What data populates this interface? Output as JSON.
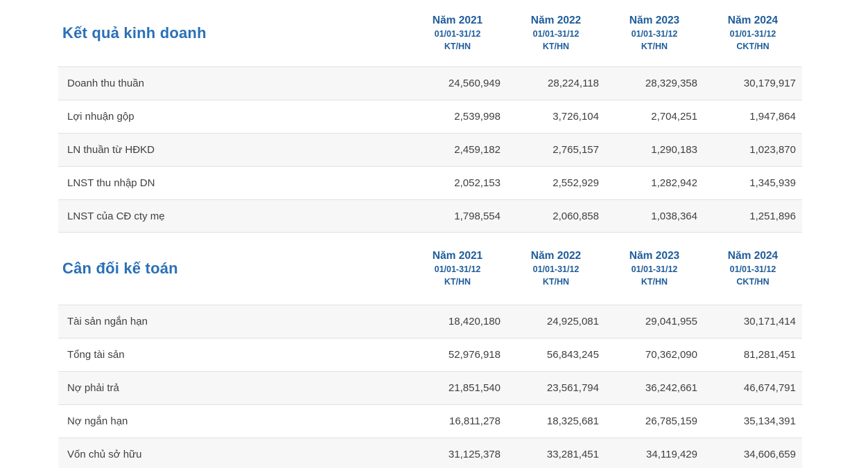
{
  "colors": {
    "section_title_blue": "#2a70b8",
    "column_header_blue": "#1e5c9a",
    "row_stripe": "#f7f7f7",
    "row_border": "#e1e1e1",
    "text": "#404040"
  },
  "sections": [
    {
      "title": "Kết quả kinh doanh",
      "columns": [
        {
          "year": "Năm 2021",
          "period": "01/01-31/12",
          "basis": "KT/HN"
        },
        {
          "year": "Năm 2022",
          "period": "01/01-31/12",
          "basis": "KT/HN"
        },
        {
          "year": "Năm 2023",
          "period": "01/01-31/12",
          "basis": "KT/HN"
        },
        {
          "year": "Năm 2024",
          "period": "01/01-31/12",
          "basis": "CKT/HN"
        }
      ],
      "rows": [
        {
          "label": "Doanh thu thuần",
          "values": [
            "24,560,949",
            "28,224,118",
            "28,329,358",
            "30,179,917"
          ]
        },
        {
          "label": "Lợi nhuận gộp",
          "values": [
            "2,539,998",
            "3,726,104",
            "2,704,251",
            "1,947,864"
          ]
        },
        {
          "label": "LN thuần từ HĐKD",
          "values": [
            "2,459,182",
            "2,765,157",
            "1,290,183",
            "1,023,870"
          ]
        },
        {
          "label": "LNST thu nhập DN",
          "values": [
            "2,052,153",
            "2,552,929",
            "1,282,942",
            "1,345,939"
          ]
        },
        {
          "label": "LNST của CĐ cty mẹ",
          "values": [
            "1,798,554",
            "2,060,858",
            "1,038,364",
            "1,251,896"
          ]
        }
      ]
    },
    {
      "title": "Cân đối kế toán",
      "columns": [
        {
          "year": "Năm 2021",
          "period": "01/01-31/12",
          "basis": "KT/HN"
        },
        {
          "year": "Năm 2022",
          "period": "01/01-31/12",
          "basis": "KT/HN"
        },
        {
          "year": "Năm 2023",
          "period": "01/01-31/12",
          "basis": "KT/HN"
        },
        {
          "year": "Năm 2024",
          "period": "01/01-31/12",
          "basis": "CKT/HN"
        }
      ],
      "rows": [
        {
          "label": "Tài sản ngắn hạn",
          "values": [
            "18,420,180",
            "24,925,081",
            "29,041,955",
            "30,171,414"
          ]
        },
        {
          "label": "Tổng tài sản",
          "values": [
            "52,976,918",
            "56,843,245",
            "70,362,090",
            "81,281,451"
          ]
        },
        {
          "label": "Nợ phải trả",
          "values": [
            "21,851,540",
            "23,561,794",
            "36,242,661",
            "46,674,791"
          ]
        },
        {
          "label": "Nợ ngắn hạn",
          "values": [
            "16,811,278",
            "18,325,681",
            "26,785,159",
            "35,134,391"
          ]
        },
        {
          "label": "Vốn chủ sở hữu",
          "values": [
            "31,125,378",
            "33,281,451",
            "34,119,429",
            "34,606,659"
          ]
        }
      ]
    }
  ]
}
